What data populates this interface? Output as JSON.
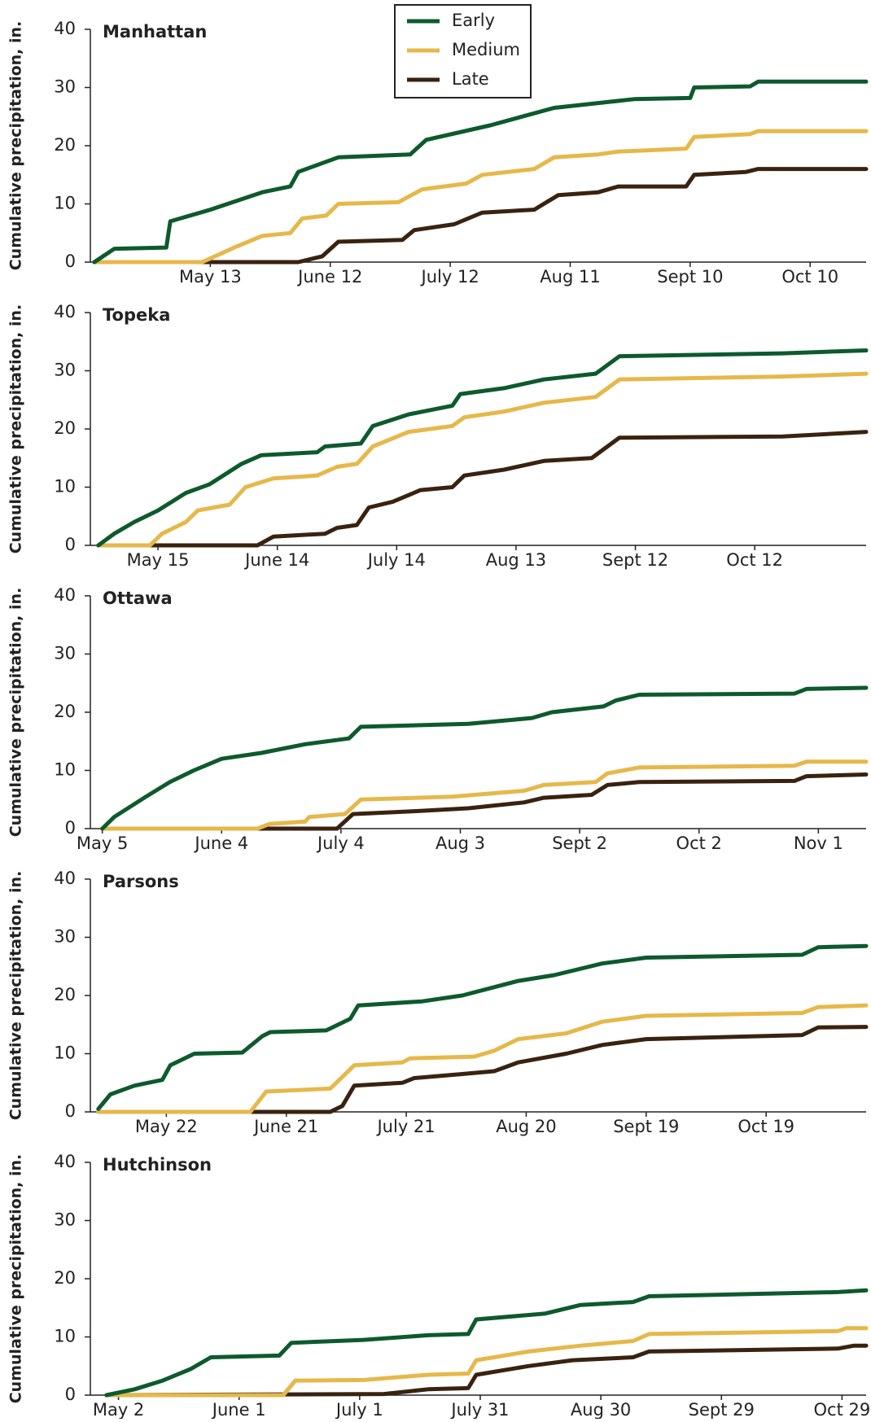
{
  "chart_data": [
    {
      "type": "line",
      "title": "Manhattan",
      "ylabel": "Cumulative precipitation, in.",
      "legend": "top",
      "xlim": [
        "Apr 13",
        "Oct 24"
      ],
      "xticks": [
        "May 13",
        "June 12",
        "July 12",
        "Aug 11",
        "Sept 10",
        "Oct 10"
      ],
      "ylim": [
        0,
        40
      ],
      "yticks": [
        0,
        10,
        20,
        30,
        40
      ],
      "grid": false,
      "series": [
        {
          "name": "Early",
          "color": "#0d5a2c",
          "x": [
            "Apr 14",
            "Apr 19",
            "May 2",
            "May 3",
            "May 13",
            "May 26",
            "June 2",
            "June 4",
            "June 14",
            "July 2",
            "July 6",
            "July 22",
            "Aug 7",
            "Aug 27",
            "Sept 10",
            "Sept 11",
            "Sept 25",
            "Sept 27",
            "Oct 24"
          ],
          "values": [
            0,
            2.3,
            2.5,
            7,
            9,
            12,
            13,
            15.5,
            18,
            18.5,
            21,
            23.5,
            26.5,
            28,
            28.2,
            30,
            30.2,
            31,
            31
          ]
        },
        {
          "name": "Medium",
          "color": "#e6b84a",
          "x": [
            "Apr 14",
            "May 11",
            "May 19",
            "May 26",
            "June 2",
            "June 5",
            "June 11",
            "June 14",
            "June 29",
            "July 5",
            "July 16",
            "July 20",
            "Aug 2",
            "Aug 7",
            "Aug 18",
            "Aug 23",
            "Sept 9",
            "Sept 11",
            "Sept 25",
            "Sept 27",
            "Oct 24"
          ],
          "values": [
            0,
            0,
            2.5,
            4.5,
            5,
            7.5,
            8,
            10,
            10.3,
            12.5,
            13.5,
            15,
            16,
            18,
            18.5,
            19,
            19.5,
            21.5,
            22,
            22.5,
            22.5
          ]
        },
        {
          "name": "Late",
          "color": "#3a2210",
          "x": [
            "Apr 14",
            "June 4",
            "June 10",
            "June 14",
            "June 30",
            "July 3",
            "July 13",
            "July 20",
            "Aug 2",
            "Aug 8",
            "Aug 18",
            "Aug 23",
            "Sept 9",
            "Sept 11",
            "Sept 24",
            "Sept 27",
            "Oct 24"
          ],
          "values": [
            0,
            0,
            1,
            3.5,
            3.8,
            5.5,
            6.5,
            8.5,
            9,
            11.5,
            12,
            13,
            13,
            15,
            15.5,
            16,
            16
          ]
        }
      ]
    },
    {
      "type": "line",
      "title": "Topeka",
      "ylabel": "Cumulative precipitation, in.",
      "xlim": [
        "Apr 28",
        "Nov 9"
      ],
      "xticks": [
        "May 15",
        "June 14",
        "July 14",
        "Aug 13",
        "Sept 12",
        "Oct 12"
      ],
      "ylim": [
        0,
        40
      ],
      "yticks": [
        0,
        10,
        20,
        30,
        40
      ],
      "grid": false,
      "series": [
        {
          "color": "#0d5a2c",
          "x": [
            "Apr 30",
            "May 4",
            "May 9",
            "May 15",
            "May 22",
            "May 28",
            "June 5",
            "June 10",
            "June 24",
            "June 26",
            "July 5",
            "July 8",
            "July 17",
            "July 28",
            "July 30",
            "Aug 10",
            "Aug 20",
            "Sept 2",
            "Sept 8",
            "Oct 19",
            "Nov 9"
          ],
          "values": [
            0,
            2,
            4,
            6,
            9,
            10.5,
            14,
            15.5,
            16,
            17,
            17.5,
            20.5,
            22.5,
            24,
            26,
            27,
            28.5,
            29.5,
            32.5,
            33,
            33.5
          ]
        },
        {
          "color": "#e6b84a",
          "x": [
            "Apr 30",
            "May 13",
            "May 16",
            "May 22",
            "May 25",
            "June 2",
            "June 6",
            "June 13",
            "June 24",
            "June 29",
            "July 4",
            "July 8",
            "July 17",
            "July 28",
            "July 31",
            "Aug 10",
            "Aug 20",
            "Sept 2",
            "Sept 8",
            "Oct 19",
            "Nov 9"
          ],
          "values": [
            0,
            0,
            2,
            4,
            6,
            7,
            10,
            11.5,
            12,
            13.5,
            14,
            17,
            19.5,
            20.5,
            22,
            23,
            24.5,
            25.5,
            28.5,
            29,
            29.5
          ]
        },
        {
          "color": "#3a2210",
          "x": [
            "Apr 30",
            "June 9",
            "June 13",
            "June 26",
            "June 29",
            "July 4",
            "July 7",
            "July 13",
            "July 20",
            "July 28",
            "July 31",
            "Aug 10",
            "Aug 20",
            "Sept 1",
            "Sept 8",
            "Oct 19",
            "Nov 9"
          ],
          "values": [
            0,
            0,
            1.5,
            2,
            3,
            3.5,
            6.5,
            7.5,
            9.5,
            10,
            12,
            13,
            14.5,
            15,
            18.5,
            18.7,
            19.5
          ]
        }
      ]
    },
    {
      "type": "line",
      "title": "Ottawa",
      "ylabel": "Cumulative precipitation, in.",
      "xlim": [
        "May 2",
        "Nov 13"
      ],
      "xticks": [
        "May 5",
        "June 4",
        "July 4",
        "Aug 3",
        "Sept 2",
        "Oct 2",
        "Nov 1"
      ],
      "ylim": [
        0,
        40
      ],
      "yticks": [
        0,
        10,
        20,
        30,
        40
      ],
      "grid": false,
      "series": [
        {
          "color": "#0d5a2c",
          "x": [
            "May 5",
            "May 8",
            "May 16",
            "May 22",
            "May 28",
            "June 4",
            "June 14",
            "June 25",
            "July 6",
            "July 9",
            "Aug 5",
            "Aug 21",
            "Aug 26",
            "Sept 8",
            "Sept 11",
            "Sept 17",
            "Oct 26",
            "Oct 29",
            "Nov 13"
          ],
          "values": [
            0,
            2,
            5.5,
            8,
            10,
            12,
            13,
            14.5,
            15.5,
            17.5,
            18,
            19,
            20,
            21,
            22,
            23,
            23.2,
            24,
            24.2
          ]
        },
        {
          "color": "#e6b84a",
          "x": [
            "May 5",
            "June 13",
            "June 16",
            "June 25",
            "June 26",
            "July 5",
            "July 9",
            "Aug 1",
            "Aug 19",
            "Aug 24",
            "Sept 6",
            "Sept 9",
            "Sept 17",
            "Oct 26",
            "Oct 29",
            "Nov 13"
          ],
          "values": [
            0,
            0,
            0.8,
            1.2,
            2,
            2.5,
            5,
            5.5,
            6.5,
            7.5,
            8,
            9.5,
            10.5,
            10.8,
            11.5,
            11.5
          ]
        },
        {
          "color": "#3a2210",
          "x": [
            "May 5",
            "July 3",
            "July 7",
            "July 23",
            "Aug 5",
            "Aug 19",
            "Aug 24",
            "Sept 5",
            "Sept 9",
            "Sept 17",
            "Oct 26",
            "Oct 29",
            "Nov 13"
          ],
          "values": [
            0,
            0,
            2.5,
            3,
            3.5,
            4.5,
            5.3,
            5.8,
            7.5,
            8,
            8.2,
            9,
            9.3
          ]
        }
      ]
    },
    {
      "type": "line",
      "title": "Parsons",
      "ylabel": "Cumulative precipitation, in.",
      "xlim": [
        "May 3",
        "Nov 13"
      ],
      "xticks": [
        "May 22",
        "June 21",
        "July 21",
        "Aug 20",
        "Sept 19",
        "Oct 19"
      ],
      "ylim": [
        0,
        40
      ],
      "yticks": [
        0,
        10,
        20,
        30,
        40
      ],
      "grid": false,
      "series": [
        {
          "color": "#0d5a2c",
          "x": [
            "May 5",
            "May 8",
            "May 14",
            "May 21",
            "May 23",
            "May 29",
            "June 10",
            "June 15",
            "June 17",
            "July 1",
            "July 7",
            "July 9",
            "July 25",
            "Aug 4",
            "Aug 18",
            "Aug 27",
            "Sept 8",
            "Sept 19",
            "Oct 28",
            "Nov 1",
            "Nov 13"
          ],
          "values": [
            0.5,
            3,
            4.5,
            5.5,
            8,
            10,
            10.2,
            13,
            13.7,
            14,
            16,
            18.3,
            19,
            20,
            22.5,
            23.5,
            25.5,
            26.5,
            27,
            28.3,
            28.5
          ]
        },
        {
          "color": "#e6b84a",
          "x": [
            "May 5",
            "June 12",
            "June 16",
            "July 2",
            "July 8",
            "July 20",
            "July 22",
            "Aug 7",
            "Aug 12",
            "Aug 18",
            "Aug 30",
            "Sept 8",
            "Sept 19",
            "Oct 28",
            "Nov 1",
            "Nov 13"
          ],
          "values": [
            0,
            0,
            3.5,
            4,
            8,
            8.5,
            9.2,
            9.5,
            10.5,
            12.5,
            13.5,
            15.5,
            16.5,
            17,
            18,
            18.3
          ]
        },
        {
          "color": "#3a2210",
          "x": [
            "May 5",
            "July 2",
            "July 5",
            "July 8",
            "July 20",
            "July 23",
            "Aug 4",
            "Aug 12",
            "Aug 18",
            "Aug 30",
            "Sept 8",
            "Sept 19",
            "Oct 28",
            "Nov 1",
            "Nov 13"
          ],
          "values": [
            0,
            0,
            1,
            4.5,
            5,
            5.8,
            6.5,
            7,
            8.5,
            10,
            11.5,
            12.5,
            13.2,
            14.5,
            14.6
          ]
        }
      ]
    },
    {
      "type": "line",
      "title": "Hutchinson",
      "ylabel": "Cumulative precipitation, in.",
      "xlim": [
        "Apr 25",
        "Nov 4"
      ],
      "xticks": [
        "May 2",
        "June 1",
        "July 1",
        "July 31",
        "Aug 30",
        "Sept 29",
        "Oct 29"
      ],
      "ylim": [
        0,
        40
      ],
      "yticks": [
        0,
        10,
        20,
        30,
        40
      ],
      "grid": false,
      "series": [
        {
          "color": "#0d5a2c",
          "x": [
            "Apr 29",
            "May 6",
            "May 13",
            "May 20",
            "May 25",
            "June 11",
            "June 14",
            "July 2",
            "July 18",
            "July 28",
            "July 30",
            "Aug 16",
            "Aug 25",
            "Sept 7",
            "Sept 11",
            "Oct 28",
            "Nov 4"
          ],
          "values": [
            0,
            1,
            2.5,
            4.5,
            6.5,
            6.8,
            9,
            9.5,
            10.3,
            10.5,
            13,
            14,
            15.5,
            16,
            17,
            17.7,
            18
          ]
        },
        {
          "color": "#e6b84a",
          "x": [
            "Apr 29",
            "June 12",
            "June 15",
            "July 2",
            "July 18",
            "July 28",
            "July 30",
            "Aug 12",
            "Aug 25",
            "Sept 7",
            "Sept 11",
            "Oct 28",
            "Oct 30",
            "Nov 4"
          ],
          "values": [
            0,
            0,
            2.5,
            2.6,
            3.5,
            3.7,
            6,
            7.5,
            8.5,
            9.3,
            10.5,
            11,
            11.5,
            11.5
          ]
        },
        {
          "color": "#3a2210",
          "x": [
            "Apr 29",
            "July 7",
            "July 18",
            "July 28",
            "July 30",
            "Aug 12",
            "Aug 23",
            "Sept 7",
            "Sept 11",
            "Oct 28",
            "Nov 1",
            "Nov 4"
          ],
          "values": [
            0,
            0.2,
            1,
            1.2,
            3.5,
            5,
            6,
            6.5,
            7.5,
            8,
            8.5,
            8.5
          ]
        }
      ]
    }
  ]
}
